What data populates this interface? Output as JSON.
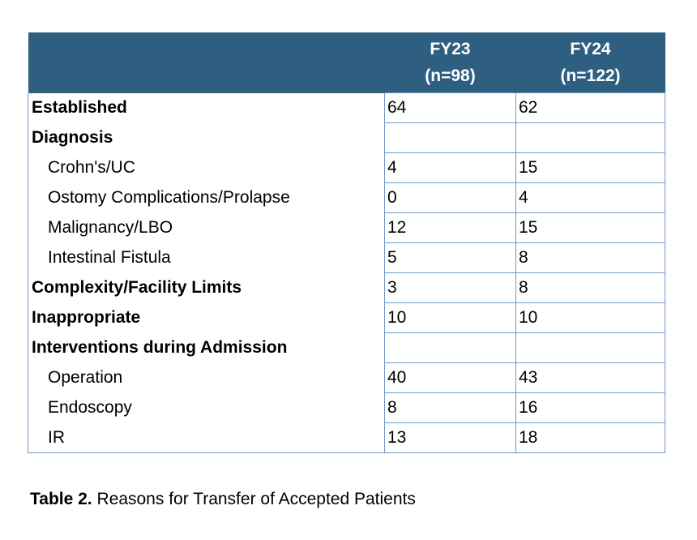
{
  "table": {
    "header": {
      "fy23_line1": "FY23",
      "fy23_line2": "(n=98)",
      "fy24_line1": "FY24",
      "fy24_line2": "(n=122)"
    },
    "rows": [
      {
        "label": "Established",
        "fy23": "64",
        "fy24": "62"
      },
      {
        "label": "Diagnosis",
        "fy23": "",
        "fy24": ""
      },
      {
        "label": "Crohn's/UC",
        "fy23": "4",
        "fy24": "15"
      },
      {
        "label": "Ostomy Complications/Prolapse",
        "fy23": "0",
        "fy24": "4"
      },
      {
        "label": "Malignancy/LBO",
        "fy23": "12",
        "fy24": "15"
      },
      {
        "label": "Intestinal Fistula",
        "fy23": "5",
        "fy24": "8"
      },
      {
        "label": "Complexity/Facility Limits",
        "fy23": "3",
        "fy24": "8"
      },
      {
        "label": "Inappropriate",
        "fy23": "10",
        "fy24": "10"
      },
      {
        "label": "Interventions during Admission",
        "fy23": "",
        "fy24": ""
      },
      {
        "label": "Operation",
        "fy23": "40",
        "fy24": "43"
      },
      {
        "label": "Endoscopy",
        "fy23": "8",
        "fy24": "16"
      },
      {
        "label": "IR",
        "fy23": "13",
        "fy24": "18"
      }
    ]
  },
  "caption": {
    "label": "Table 2.",
    "text": " Reasons for Transfer of Accepted Patients"
  },
  "colors": {
    "header_bg": "#2e5f80",
    "header_text": "#ffffff",
    "grid": "#6f98c4"
  }
}
